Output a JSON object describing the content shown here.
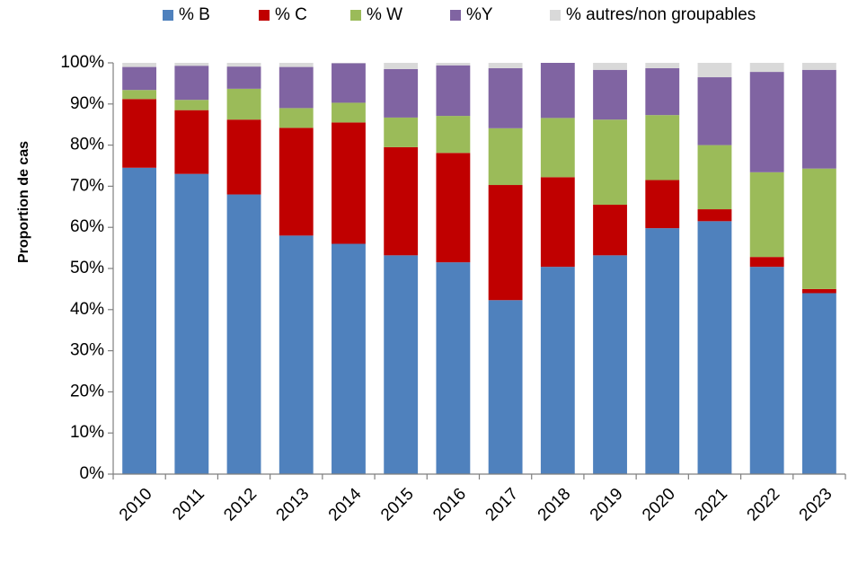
{
  "chart_data": {
    "type": "bar",
    "stacked": true,
    "ylabel": "Proportion de cas",
    "xlabel": "",
    "ylim": [
      0,
      100
    ],
    "y_tick_labels": [
      "0%",
      "10%",
      "20%",
      "30%",
      "40%",
      "50%",
      "60%",
      "70%",
      "80%",
      "90%",
      "100%"
    ],
    "grid": false,
    "legend_position": "top",
    "categories": [
      "2010",
      "2011",
      "2012",
      "2013",
      "2014",
      "2015",
      "2016",
      "2017",
      "2018",
      "2019",
      "2020",
      "2021",
      "2022",
      "2023"
    ],
    "series": [
      {
        "name": "% B",
        "color": "#4F81BD",
        "values": [
          74.5,
          73.0,
          68.0,
          58.0,
          56.0,
          53.2,
          51.5,
          42.3,
          50.4,
          53.2,
          59.8,
          61.5,
          50.4,
          44.0
        ]
      },
      {
        "name": "% C",
        "color": "#C00000",
        "values": [
          16.7,
          15.5,
          18.2,
          26.2,
          29.5,
          26.3,
          26.6,
          28.0,
          21.8,
          12.3,
          11.7,
          2.9,
          2.4,
          1.0
        ]
      },
      {
        "name": "% W",
        "color": "#9BBB59",
        "values": [
          2.2,
          2.5,
          7.5,
          4.8,
          4.8,
          7.2,
          9.0,
          13.8,
          14.4,
          20.7,
          15.8,
          15.6,
          20.6,
          29.3
        ]
      },
      {
        "name": "%Y",
        "color": "#8064A2",
        "values": [
          5.6,
          8.3,
          5.4,
          10.0,
          9.6,
          11.8,
          12.3,
          14.6,
          13.4,
          12.1,
          11.4,
          16.5,
          24.4,
          24.0
        ]
      },
      {
        "name": "% autres/non groupables",
        "color": "#D9D9D9",
        "values": [
          1.0,
          0.7,
          0.9,
          1.0,
          0.1,
          1.5,
          0.6,
          1.3,
          0.0,
          1.7,
          1.3,
          3.5,
          2.2,
          1.7
        ]
      }
    ]
  }
}
